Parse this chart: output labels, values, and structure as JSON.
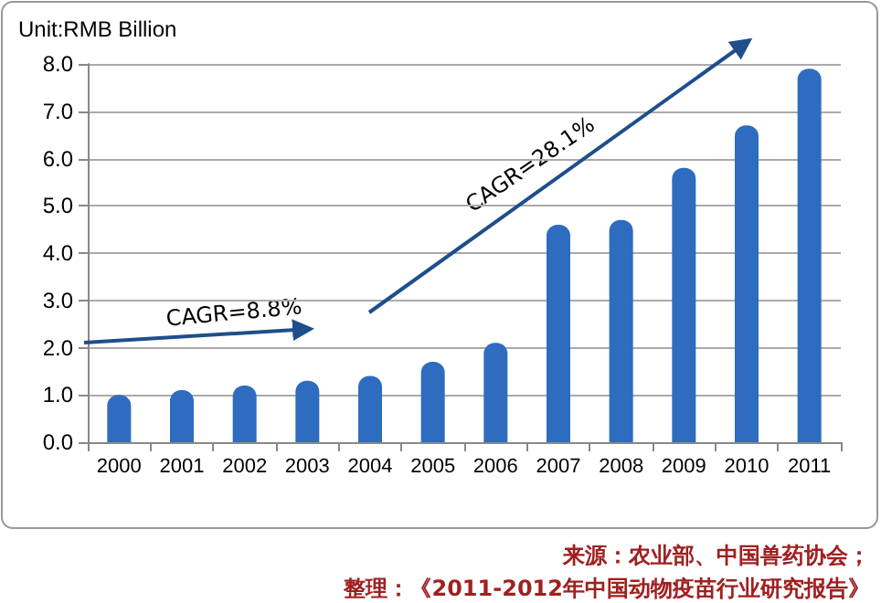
{
  "chart_data": {
    "type": "bar",
    "ylabel": "Unit:RMB Billion",
    "categories": [
      "2000",
      "2001",
      "2002",
      "2003",
      "2004",
      "2005",
      "2006",
      "2007",
      "2008",
      "2009",
      "2010",
      "2011"
    ],
    "values": [
      1.0,
      1.1,
      1.2,
      1.3,
      1.4,
      1.7,
      2.1,
      4.6,
      4.7,
      5.8,
      6.7,
      7.9
    ],
    "color": "#2e6cbf",
    "ylim": [
      0,
      8
    ],
    "yticks": [
      {
        "value": 0,
        "label": "0.0"
      },
      {
        "value": 1,
        "label": "1.0"
      },
      {
        "value": 2,
        "label": "2.0"
      },
      {
        "value": 3,
        "label": "3.0"
      },
      {
        "value": 4,
        "label": "4.0"
      },
      {
        "value": 5,
        "label": "5.0"
      },
      {
        "value": 6,
        "label": "6.0"
      },
      {
        "value": 7,
        "label": "7.0"
      },
      {
        "value": 8,
        "label": "8.0"
      }
    ],
    "grid": "y",
    "annotations": [
      "CAGR=8.8%",
      "CAGR=28.1%",
      "来源：农业部、中国兽药协会；",
      "整理：《2011-2012年中国动物疫苗行业研究报告》"
    ]
  }
}
